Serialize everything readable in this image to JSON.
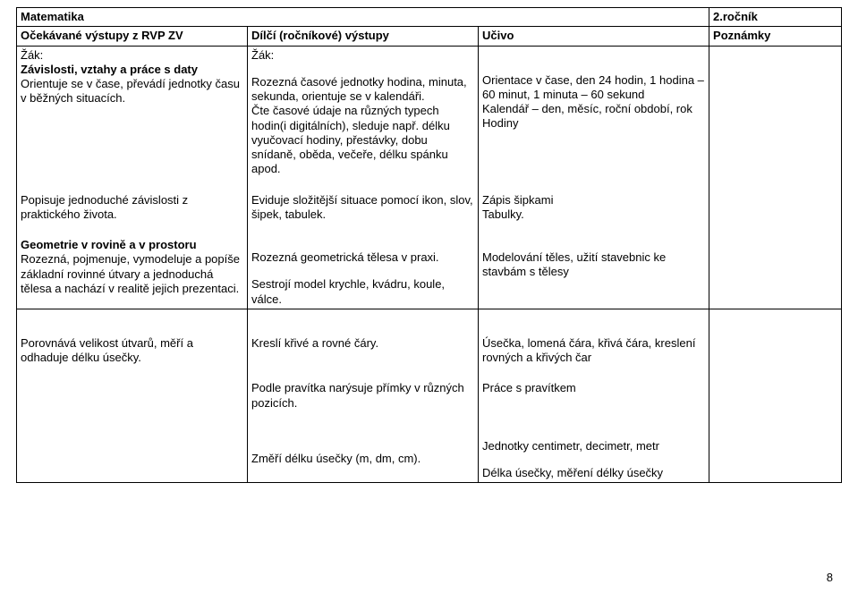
{
  "title_left": "Matematika",
  "title_right": "2.ročník",
  "headers": {
    "c1": "Očekávané výstupy z RVP ZV",
    "c2": "Dílčí (ročníkové) výstupy",
    "c3": "Učivo",
    "c4": "Poznámky"
  },
  "r1": {
    "c1_l1": "Žák:",
    "c1_l2": "Závislosti, vztahy a práce s daty",
    "c1_l3": "Orientuje se v čase, převádí jednotky času v běžných situacích.",
    "c2_l1": "Žák:",
    "c2_l2": "Rozezná časové jednotky hodina, minuta, sekunda, orientuje se v kalendáři.",
    "c2_l3": "Čte časové údaje na různých typech hodin(i digitálních), sleduje např. délku vyučovací hodiny, přestávky, dobu snídaně, oběda, večeře, délku spánku apod.",
    "c3_l1": "Orientace v čase, den 24 hodin, 1 hodina – 60 minut, 1 minuta – 60 sekund",
    "c3_l2": "Kalendář – den, měsíc, roční období, rok",
    "c3_l3": "Hodiny"
  },
  "r2": {
    "c1": "Popisuje jednoduché závislosti z praktického života.",
    "c2": "Eviduje složitější situace pomocí ikon, slov, šipek, tabulek.",
    "c3_l1": "Zápis šipkami",
    "c3_l2": "Tabulky."
  },
  "r3": {
    "c1_l1": "Geometrie v rovině a v prostoru",
    "c1_l2": "Rozezná, pojmenuje, vymodeluje a popíše základní rovinné útvary a jednoduchá tělesa a nachází v realitě jejich prezentaci.",
    "c2_l1": "Rozezná geometrická tělesa v praxi.",
    "c2_l2": "Sestrojí model krychle, kvádru, koule, válce.",
    "c3": "Modelování těles, užití stavebnic ke stavbám s tělesy"
  },
  "r4": {
    "c1": "Porovnává velikost útvarů, měří a odhaduje délku úsečky.",
    "c2": "Kreslí křivé a rovné čáry.",
    "c3": "Úsečka, lomená čára, křivá čára, kreslení rovných a křivých čar"
  },
  "r5": {
    "c2": "Podle pravítka narýsuje přímky v různých pozicích.",
    "c3": "Práce s pravítkem"
  },
  "r6": {
    "c2": "Změří délku úsečky (m, dm, cm).",
    "c3_l1": "Jednotky centimetr, decimetr, metr",
    "c3_l2": "Délka úsečky, měření délky úsečky"
  },
  "page_number": "8"
}
